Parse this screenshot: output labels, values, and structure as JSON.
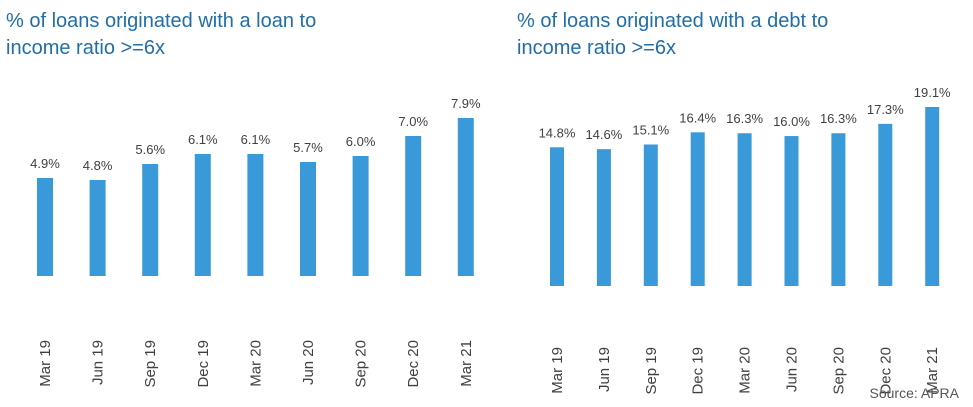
{
  "chart_data": [
    {
      "type": "bar",
      "title": "% of loans originated with a loan to income ratio >=6x",
      "categories": [
        "Mar 19",
        "Jun 19",
        "Sep 19",
        "Dec 19",
        "Mar 20",
        "Jun 20",
        "Sep 20",
        "Dec 20",
        "Mar 21"
      ],
      "values": [
        4.9,
        4.8,
        5.6,
        6.1,
        6.1,
        5.7,
        6.0,
        7.0,
        7.9
      ],
      "data_labels": [
        "4.9%",
        "4.8%",
        "5.6%",
        "6.1%",
        "6.1%",
        "5.7%",
        "6.0%",
        "7.0%",
        "7.9%"
      ],
      "bar_color": "#3a9ad9",
      "ylim": [
        0,
        11.7
      ],
      "grid": false,
      "legend": false
    },
    {
      "type": "bar",
      "title": "% of loans originated with a debt to income ratio >=6x",
      "categories": [
        "Mar 19",
        "Jun 19",
        "Sep 19",
        "Dec 19",
        "Mar 20",
        "Jun 20",
        "Sep 20",
        "Dec 20",
        "Mar 21"
      ],
      "values": [
        14.8,
        14.6,
        15.1,
        16.4,
        16.3,
        16.0,
        16.3,
        17.3,
        19.1
      ],
      "data_labels": [
        "14.8%",
        "14.6%",
        "15.1%",
        "16.4%",
        "16.3%",
        "16.0%",
        "16.3%",
        "17.3%",
        "19.1%"
      ],
      "bar_color": "#3a9ad9",
      "ylim": [
        0,
        19.1
      ],
      "grid": false,
      "legend": false
    }
  ],
  "source": "Source: APRA",
  "colors": {
    "title": "#1f6ea8",
    "label": "#404040"
  }
}
